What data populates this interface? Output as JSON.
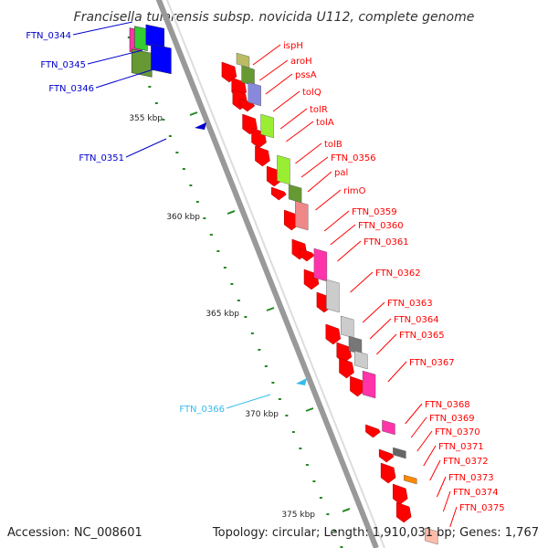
{
  "title": "Francisella tularensis subsp. novicida U112, complete genome",
  "footer": {
    "accession": "Accession: NC_008601",
    "topology": "Topology: circular; Length: 1,910,031 bp; Genes: 1,767"
  },
  "colors": {
    "red_genes": "#ff0000",
    "blue_genes": "#0000cc",
    "cyan_gene": "#33bbee",
    "backbone": "#999999",
    "tick_green": "#228822"
  },
  "scale_ticks": [
    "355 kbp",
    "360 kbp",
    "365 kbp",
    "370 kbp",
    "375 kbp"
  ],
  "left_labels": {
    "blue": [
      "FTN_0344",
      "FTN_0345",
      "FTN_0346",
      "FTN_0351"
    ],
    "cyan": [
      "FTN_0366"
    ]
  },
  "right_labels": [
    "ispH",
    "aroH",
    "pssA",
    "tolQ",
    "tolR",
    "tolA",
    "tolB",
    "FTN_0356",
    "pal",
    "rimO",
    "FTN_0359",
    "FTN_0360",
    "FTN_0361",
    "FTN_0362",
    "FTN_0363",
    "FTN_0364",
    "FTN_0365",
    "FTN_0367",
    "FTN_0368",
    "FTN_0369",
    "FTN_0370",
    "FTN_0371",
    "FTN_0372",
    "FTN_0373",
    "FTN_0374",
    "FTN_0375"
  ]
}
